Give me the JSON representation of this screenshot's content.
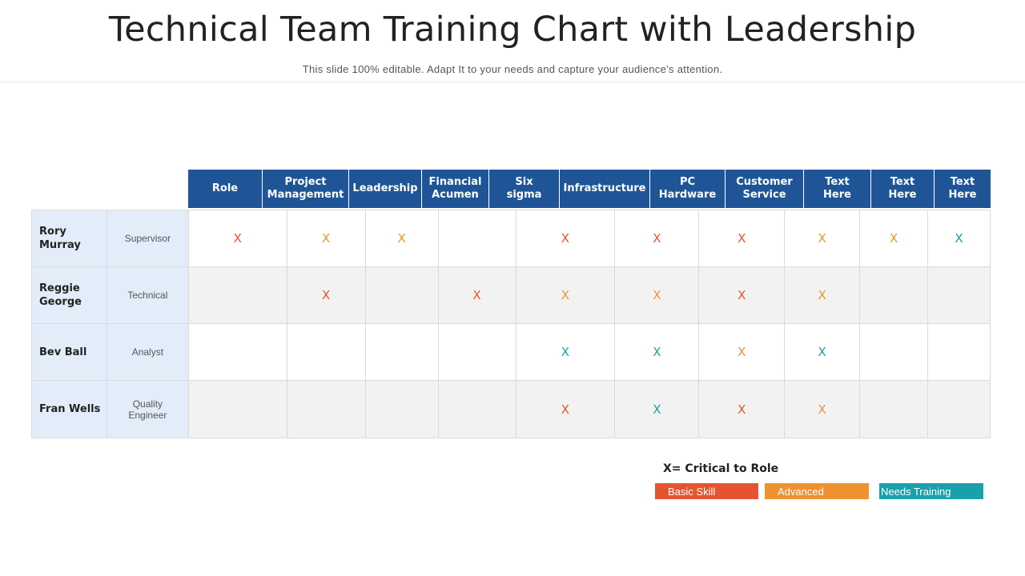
{
  "title": "Technical Team Training Chart with Leadership",
  "subtitle": "This slide 100% editable. Adapt  It to your needs and capture your audience’s attention.",
  "columns": [
    "Role",
    "Project\nManagement",
    "Leadership",
    "Financial\nAcumen",
    "Six\nsigma",
    "Infrastructure",
    "PC\nHardware",
    "Customer\nService",
    "Text\nHere",
    "Text\nHere",
    "Text\nHere"
  ],
  "rows": [
    {
      "name": "Rory\nMurray",
      "role": "Supervisor",
      "marks": [
        "basic",
        "advanced",
        "advanced",
        "",
        "basic",
        "basic",
        "basic",
        "advanced",
        "advanced",
        "training"
      ]
    },
    {
      "name": "Reggie\nGeorge",
      "role": "Technical",
      "marks": [
        "",
        "basic",
        "",
        "basic",
        "advanced",
        "advanced",
        "basic",
        "advanced",
        "",
        ""
      ]
    },
    {
      "name": "Bev Ball",
      "role": "Analyst",
      "marks": [
        "",
        "",
        "",
        "",
        "training",
        "training",
        "advanced",
        "training",
        "",
        ""
      ]
    },
    {
      "name": "Fran Wells",
      "role": "Quality\nEngineer",
      "marks": [
        "",
        "",
        "",
        "",
        "basic",
        "training",
        "basic",
        "advanced",
        "",
        ""
      ]
    }
  ],
  "mark_symbol": "X",
  "legend": {
    "title": "X= Critical to Role",
    "items": [
      {
        "key": "basic",
        "label": "Basic Skill",
        "color": "#e4552f"
      },
      {
        "key": "advanced",
        "label": "Advanced",
        "color": "#ee922f"
      },
      {
        "key": "training",
        "label": "Needs Training",
        "color": "#1aa0ab"
      }
    ]
  },
  "colors": {
    "header": "#1f5597",
    "name_column": "#e2edf9",
    "alt_row": "#f2f2f2"
  }
}
